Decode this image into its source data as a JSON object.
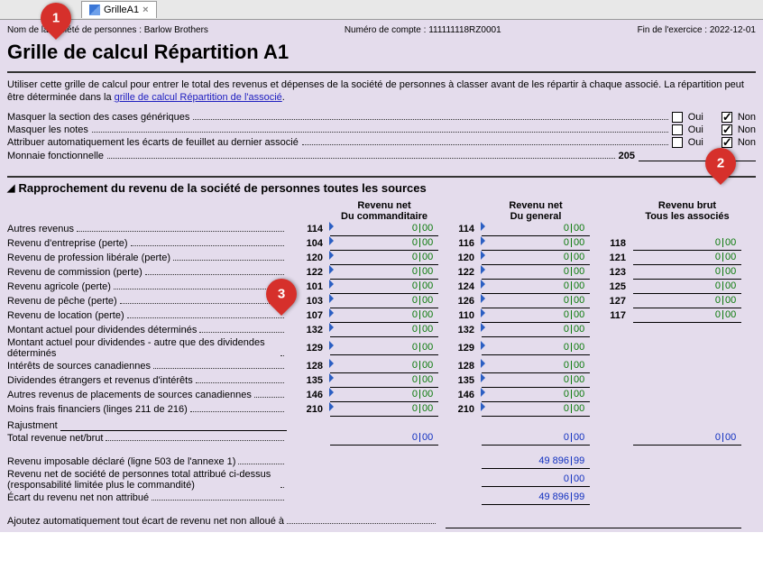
{
  "tab": {
    "label": "GrilleA1"
  },
  "meta": {
    "company_label": "Nom de la société de personnes : ",
    "company": "Barlow Brothers",
    "account_label": "Numéro de compte : ",
    "account": "111111118RZ0001",
    "fye_label": "Fin de l'exercice : ",
    "fye": "2022-12-01"
  },
  "title": "Grille de calcul Répartition A1",
  "description_pre": "Utiliser cette grille de calcul pour entrer le total des revenus et dépenses de la société de personnes à classer avant de les répartir à chaque associé. La répartition peut être déterminée dans la ",
  "description_link": "grille de calcul Répartition de l'associé",
  "description_post": ".",
  "options": [
    {
      "label": "Masquer la section des cases génériques",
      "oui": false,
      "non": true
    },
    {
      "label": "Masquer les notes",
      "oui": false,
      "non": true
    },
    {
      "label": "Attribuer automatiquement les écarts de feuillet au dernier associé",
      "oui": false,
      "non": true
    }
  ],
  "oui_label": "Oui",
  "non_label": "Non",
  "monnaie_label": "Monnaie fonctionnelle",
  "monnaie_code": "205",
  "monnaie_value": "",
  "section_title": "Rapprochement du revenu de la société de personnes toutes les sources",
  "col_headers": {
    "c1a": "Revenu net",
    "c1b": "Du commanditaire",
    "c2a": "Revenu net",
    "c2b": "Du general",
    "c3a": "Revenu brut",
    "c3b": "Tous les associés"
  },
  "rows": [
    {
      "label": "Autres revenus",
      "c1": "114",
      "v1": {
        "w": "0",
        "c": "00"
      },
      "c2": "114",
      "v2": {
        "w": "0",
        "c": "00"
      }
    },
    {
      "label": "Revenu d'entreprise (perte)",
      "c1": "104",
      "v1": {
        "w": "0",
        "c": "00"
      },
      "c2": "116",
      "v2": {
        "w": "0",
        "c": "00"
      },
      "c3": "118",
      "v3": {
        "w": "0",
        "c": "00"
      }
    },
    {
      "label": "Revenu de profession libérale (perte)",
      "c1": "120",
      "v1": {
        "w": "0",
        "c": "00"
      },
      "c2": "120",
      "v2": {
        "w": "0",
        "c": "00"
      },
      "c3": "121",
      "v3": {
        "w": "0",
        "c": "00"
      }
    },
    {
      "label": "Revenu de commission (perte)",
      "c1": "122",
      "v1": {
        "w": "0",
        "c": "00"
      },
      "c2": "122",
      "v2": {
        "w": "0",
        "c": "00"
      },
      "c3": "123",
      "v3": {
        "w": "0",
        "c": "00"
      }
    },
    {
      "label": "Revenu agricole (perte)",
      "c1": "101",
      "v1": {
        "w": "0",
        "c": "00"
      },
      "c2": "124",
      "v2": {
        "w": "0",
        "c": "00"
      },
      "c3": "125",
      "v3": {
        "w": "0",
        "c": "00"
      }
    },
    {
      "label": "Revenu de pêche (perte)",
      "c1": "103",
      "v1": {
        "w": "0",
        "c": "00"
      },
      "c2": "126",
      "v2": {
        "w": "0",
        "c": "00"
      },
      "c3": "127",
      "v3": {
        "w": "0",
        "c": "00"
      }
    },
    {
      "label": "Revenu de location (perte)",
      "c1": "107",
      "v1": {
        "w": "0",
        "c": "00"
      },
      "c2": "110",
      "v2": {
        "w": "0",
        "c": "00"
      },
      "c3": "117",
      "v3": {
        "w": "0",
        "c": "00"
      }
    },
    {
      "label": "Montant actuel pour dividendes déterminés",
      "c1": "132",
      "v1": {
        "w": "0",
        "c": "00"
      },
      "c2": "132",
      "v2": {
        "w": "0",
        "c": "00"
      }
    },
    {
      "label": "Montant actuel pour dividendes - autre que des dividendes déterminés",
      "wrap": true,
      "c1": "129",
      "v1": {
        "w": "0",
        "c": "00"
      },
      "c2": "129",
      "v2": {
        "w": "0",
        "c": "00"
      }
    },
    {
      "label": "Intérêts de sources canadiennes",
      "c1": "128",
      "v1": {
        "w": "0",
        "c": "00"
      },
      "c2": "128",
      "v2": {
        "w": "0",
        "c": "00"
      }
    },
    {
      "label": "Dividendes étrangers et revenus d'intérêts",
      "c1": "135",
      "v1": {
        "w": "0",
        "c": "00"
      },
      "c2": "135",
      "v2": {
        "w": "0",
        "c": "00"
      }
    },
    {
      "label": "Autres revenus de placements de sources canadiennes",
      "c1": "146",
      "v1": {
        "w": "0",
        "c": "00"
      },
      "c2": "146",
      "v2": {
        "w": "0",
        "c": "00"
      }
    },
    {
      "label": "Moins frais financiers (linges 211 de 216)",
      "c1": "210",
      "v1": {
        "w": "0",
        "c": "00"
      },
      "c2": "210",
      "v2": {
        "w": "0",
        "c": "00"
      }
    }
  ],
  "rajustment_label": "Rajustment",
  "total_label": "Total revenue net/brut",
  "total_v1": {
    "w": "0",
    "c": "00"
  },
  "total_v2": {
    "w": "0",
    "c": "00"
  },
  "total_v3": {
    "w": "0",
    "c": "00"
  },
  "ri_label": "Revenu imposable déclaré (ligne 503 de l'annexe 1)",
  "ri_v": {
    "w": "49 896",
    "c": "99"
  },
  "rn_label": "Revenu net de société de personnes total attribué ci-dessus (responsabilité limitée plus le commandité)",
  "rn_v": {
    "w": "0",
    "c": "00"
  },
  "ec_label": "Écart du revenu net non attribué",
  "ec_v": {
    "w": "49 896",
    "c": "99"
  },
  "auto_label": "Ajoutez automatiquement tout écart de revenu net non alloué à",
  "pins": {
    "p1": "1",
    "p2": "2",
    "p3": "3"
  },
  "colors": {
    "bg": "#e4dcec",
    "accent": "#d6302b",
    "green": "#0a7a0a",
    "blue": "#1030c0"
  }
}
